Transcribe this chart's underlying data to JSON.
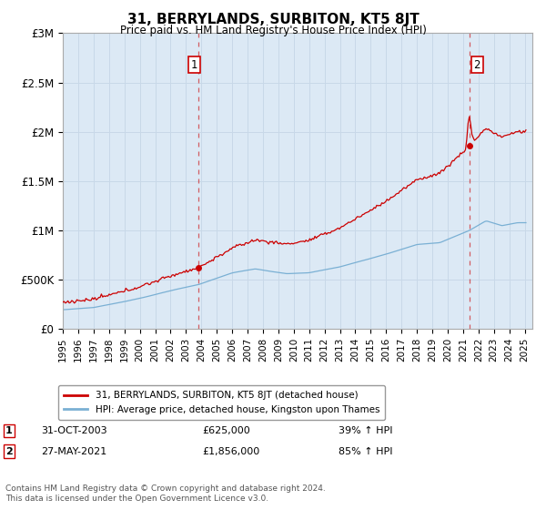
{
  "title": "31, BERRYLANDS, SURBITON, KT5 8JT",
  "subtitle": "Price paid vs. HM Land Registry's House Price Index (HPI)",
  "sale1_date": "31-OCT-2003",
  "sale1_price": 625000,
  "sale1_label": "39% ↑ HPI",
  "sale1_x": 2003.83,
  "sale2_date": "27-MAY-2021",
  "sale2_price": 1856000,
  "sale2_label": "85% ↑ HPI",
  "sale2_x": 2021.41,
  "annotation1_text": "1",
  "annotation2_text": "2",
  "red_color": "#cc0000",
  "blue_color": "#7ab0d4",
  "grid_color": "#c8d8e8",
  "chart_bg": "#dce9f5",
  "background_color": "#ffffff",
  "legend1": "31, BERRYLANDS, SURBITON, KT5 8JT (detached house)",
  "legend2": "HPI: Average price, detached house, Kingston upon Thames",
  "footer": "Contains HM Land Registry data © Crown copyright and database right 2024.\nThis data is licensed under the Open Government Licence v3.0.",
  "ylabel_ticks": [
    "£0",
    "£500K",
    "£1M",
    "£1.5M",
    "£2M",
    "£2.5M",
    "£3M"
  ],
  "ylabel_values": [
    0,
    500000,
    1000000,
    1500000,
    2000000,
    2500000,
    3000000
  ],
  "xmin": 1995,
  "xmax": 2025.5,
  "ymin": 0,
  "ymax": 3000000
}
